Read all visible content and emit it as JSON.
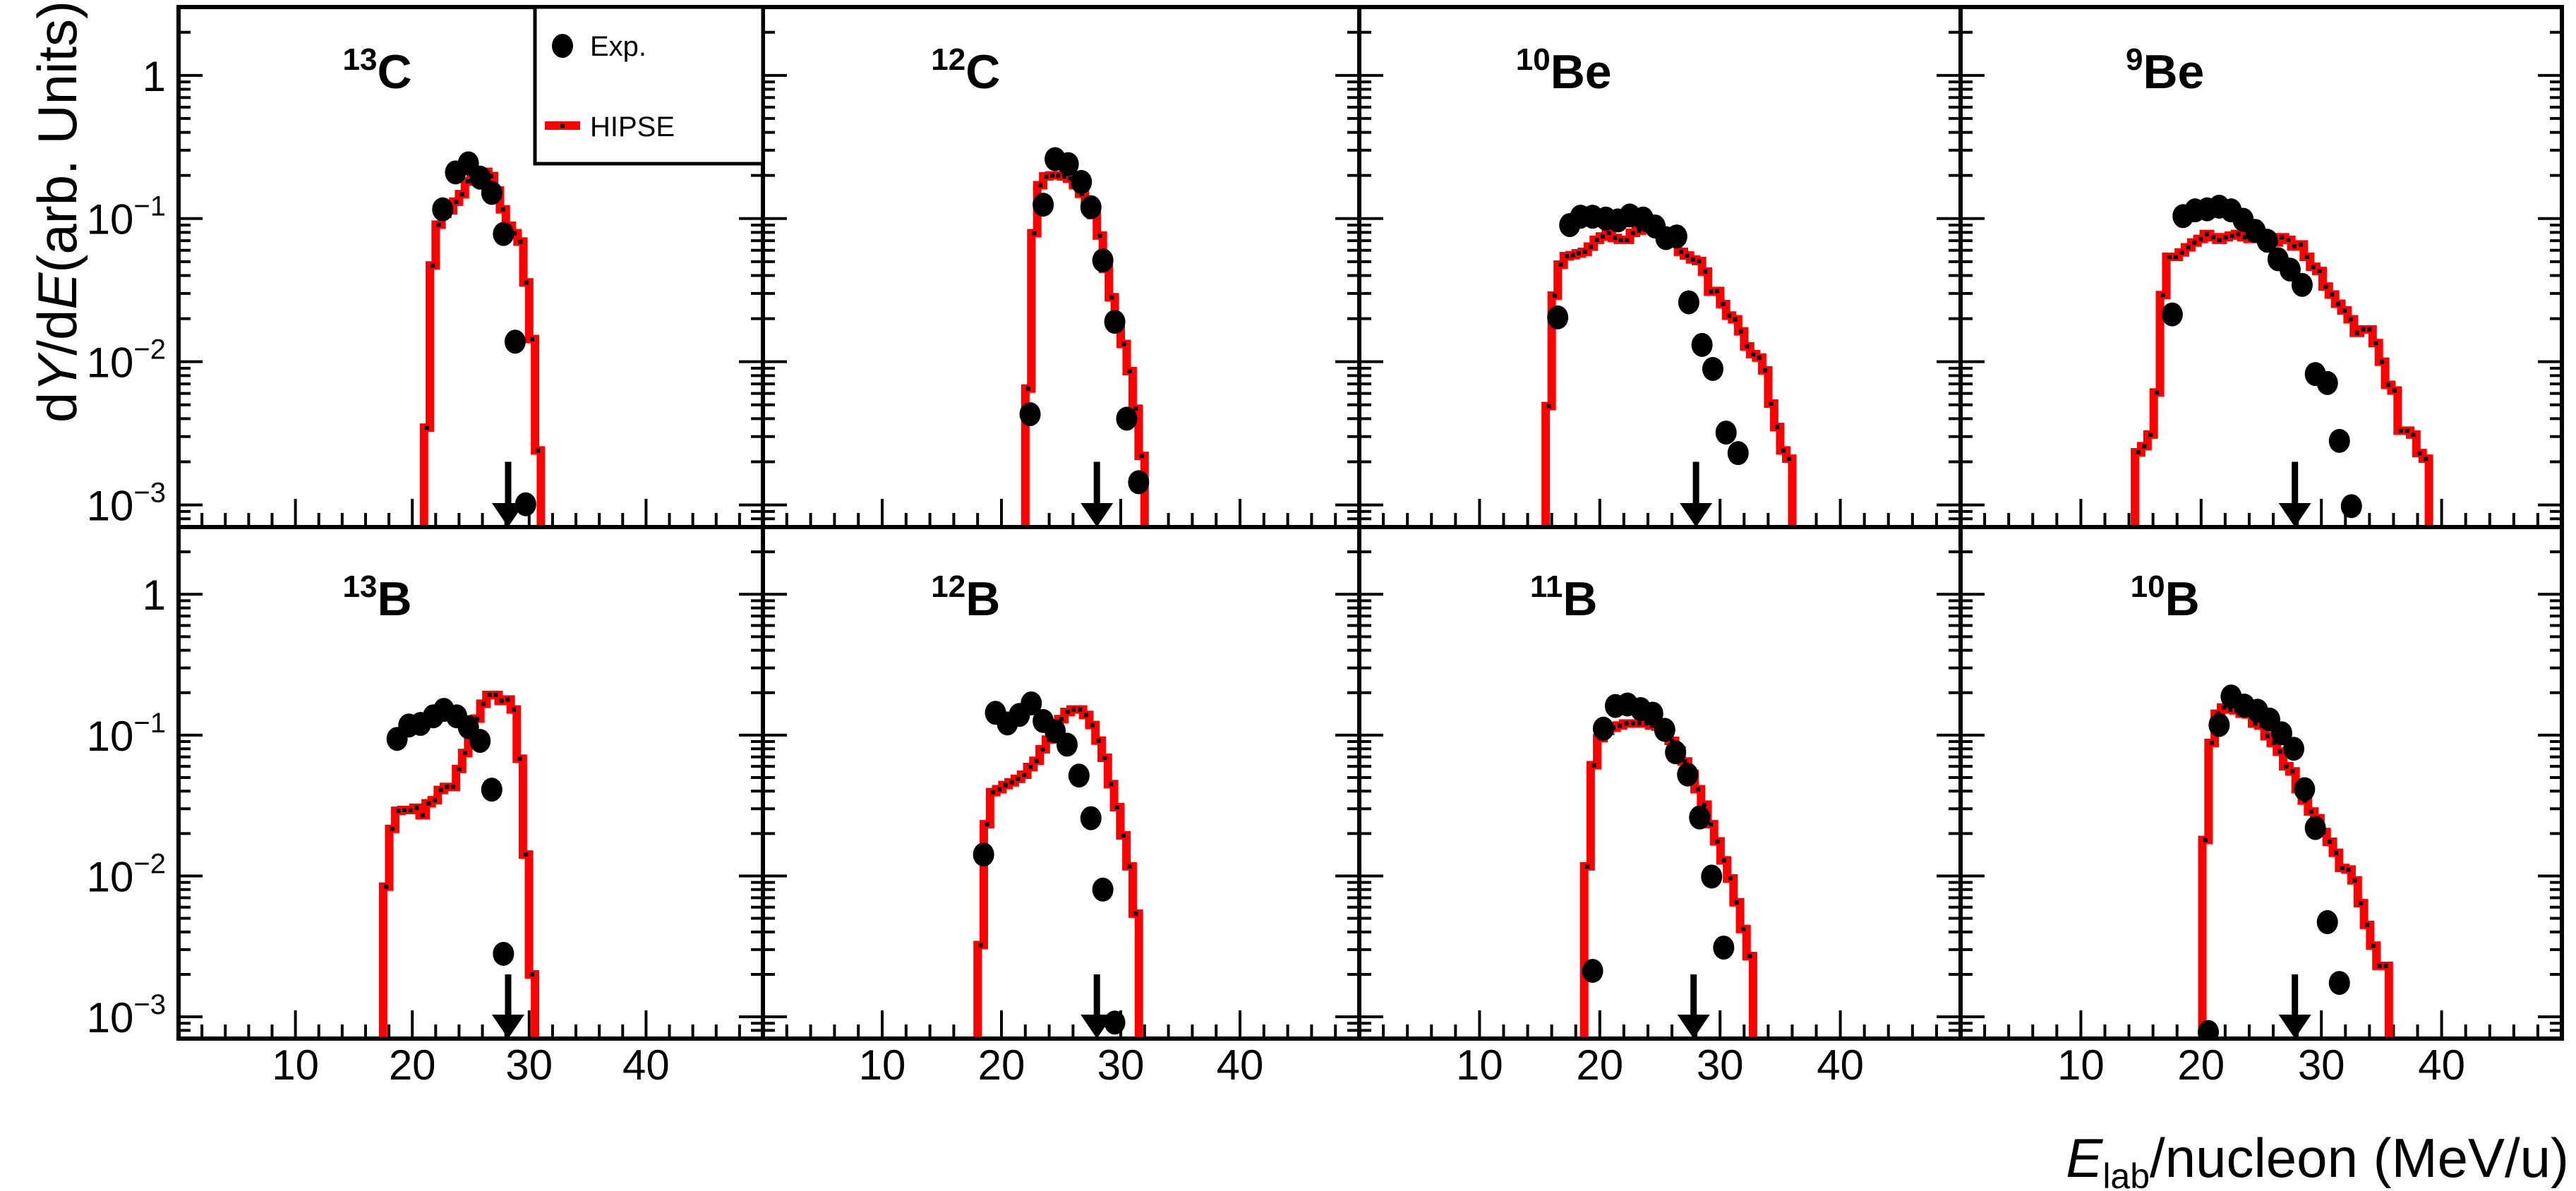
{
  "chart_data": {
    "type": "line",
    "ylabel": {
      "d1": "d",
      "Y": "Y",
      "slash": "/d",
      "E": "E",
      "rest": "(arb. Units)"
    },
    "xlabel": {
      "E": "E",
      "sub": "lab",
      "rest": "/nucleon (MeV/u)"
    },
    "xlim": [
      0,
      50
    ],
    "ylim": [
      0.0007,
      3
    ],
    "yscale": "log",
    "x_ticks": [
      10,
      20,
      30,
      40
    ],
    "x_tick_labels": [
      "10",
      "20",
      "30",
      "40"
    ],
    "y_ticks": [
      {
        "value": 1,
        "base": "1",
        "exp": ""
      },
      {
        "value": 0.1,
        "base": "10",
        "exp": "−1"
      },
      {
        "value": 0.01,
        "base": "10",
        "exp": "−2"
      },
      {
        "value": 0.001,
        "base": "10",
        "exp": "−3"
      }
    ],
    "legend": {
      "position": "top-right of first panel",
      "exp": "Exp.",
      "hipse": "HIPSE"
    },
    "colors": {
      "hipse": "#ff0000",
      "exp": "#000000"
    },
    "panels": [
      {
        "mass": "13",
        "element": "C",
        "arrow_E": 28.2,
        "exp": {
          "x": [
            22.6,
            23.7,
            24.8,
            25.8,
            26.8,
            27.8,
            28.8,
            29.7
          ],
          "y": [
            0.116,
            0.21,
            0.243,
            0.193,
            0.151,
            0.078,
            0.0138,
            0.00101
          ]
        },
        "hipse": {
          "start": 21.0,
          "width": 0.5,
          "y": [
            0.00346,
            0.047,
            0.0906,
            0.108,
            0.114,
            0.131,
            0.148,
            0.182,
            0.21,
            0.212,
            0.212,
            0.198,
            0.157,
            0.116,
            0.089,
            0.079,
            0.069,
            0.0358,
            0.0144,
            0.0024
          ]
        }
      },
      {
        "mass": "12",
        "element": "C",
        "arrow_E": 28.0,
        "exp": {
          "x": [
            22.4,
            23.5,
            24.5,
            25.6,
            26.7,
            27.5,
            28.5,
            29.5,
            30.5,
            31.5
          ],
          "y": [
            0.0043,
            0.125,
            0.26,
            0.24,
            0.18,
            0.12,
            0.051,
            0.019,
            0.004,
            0.00144
          ]
        },
        "hipse": {
          "start": 22.0,
          "width": 0.5,
          "y": [
            0.0065,
            0.079,
            0.171,
            0.197,
            0.2,
            0.2,
            0.197,
            0.19,
            0.171,
            0.149,
            0.13,
            0.106,
            0.076,
            0.0446,
            0.0282,
            0.0175,
            0.0133,
            0.0086,
            0.0047,
            0.0022
          ]
        }
      },
      {
        "mass": "10",
        "element": "Be",
        "arrow_E": 28.0,
        "exp": {
          "x": [
            16.5,
            17.5,
            18.4,
            19.4,
            20.5,
            21.5,
            22.5,
            23.6,
            24.6,
            25.5,
            26.4,
            27.4,
            28.5,
            29.4,
            30.5,
            31.5
          ],
          "y": [
            0.0204,
            0.09,
            0.103,
            0.103,
            0.1,
            0.097,
            0.105,
            0.1,
            0.088,
            0.073,
            0.075,
            0.026,
            0.0131,
            0.0089,
            0.0032,
            0.0023
          ]
        },
        "hipse": {
          "start": 15.5,
          "width": 0.5,
          "y": [
            0.0049,
            0.029,
            0.0477,
            0.0546,
            0.0555,
            0.0572,
            0.0586,
            0.0637,
            0.071,
            0.075,
            0.0794,
            0.0732,
            0.071,
            0.071,
            0.0794,
            0.0823,
            0.0837,
            0.0837,
            0.0794,
            0.0744,
            0.071,
            0.0667,
            0.0586,
            0.0552,
            0.0518,
            0.0505,
            0.0426,
            0.0309,
            0.0312,
            0.0253,
            0.021,
            0.0198,
            0.0163,
            0.0128,
            0.0113,
            0.0107,
            0.0087,
            0.0051,
            0.0035,
            0.0024,
            0.0021
          ]
        }
      },
      {
        "mass": "9",
        "element": "Be",
        "arrow_E": 27.8,
        "exp": {
          "x": [
            17.6,
            18.5,
            19.5,
            20.5,
            21.5,
            22.5,
            23.5,
            24.5,
            25.5,
            26.4,
            27.4,
            28.4,
            29.5,
            30.5,
            31.5,
            32.5
          ],
          "y": [
            0.0214,
            0.104,
            0.114,
            0.116,
            0.121,
            0.114,
            0.098,
            0.082,
            0.07,
            0.052,
            0.044,
            0.0344,
            0.0082,
            0.0071,
            0.0028,
            0.00098
          ]
        },
        "hipse": {
          "start": 14.5,
          "width": 0.52,
          "y": [
            0.00233,
            0.00257,
            0.0031,
            0.0061,
            0.0292,
            0.054,
            0.054,
            0.058,
            0.063,
            0.068,
            0.072,
            0.078,
            0.074,
            0.071,
            0.074,
            0.076,
            0.078,
            0.074,
            0.072,
            0.084,
            0.078,
            0.072,
            0.068,
            0.074,
            0.071,
            0.064,
            0.066,
            0.054,
            0.046,
            0.043,
            0.0335,
            0.0295,
            0.0254,
            0.0228,
            0.0198,
            0.0159,
            0.0168,
            0.0168,
            0.0135,
            0.01,
            0.0069,
            0.0063,
            0.0033,
            0.0033,
            0.0031,
            0.0023,
            0.0021
          ]
        }
      },
      {
        "mass": "13",
        "element": "B",
        "arrow_E": 28.2,
        "exp": {
          "x": [
            18.7,
            19.7,
            20.7,
            21.8,
            22.7,
            23.8,
            24.8,
            25.8,
            26.8,
            27.8
          ],
          "y": [
            0.094,
            0.117,
            0.12,
            0.136,
            0.151,
            0.136,
            0.114,
            0.091,
            0.041,
            0.0028
          ]
        },
        "hipse": {
          "start": 17.5,
          "width": 0.52,
          "y": [
            0.0084,
            0.0216,
            0.029,
            0.0294,
            0.0294,
            0.0305,
            0.027,
            0.0328,
            0.0345,
            0.0408,
            0.0429,
            0.0429,
            0.0575,
            0.0747,
            0.0957,
            0.131,
            0.167,
            0.193,
            0.193,
            0.175,
            0.179,
            0.152,
            0.068,
            0.0142,
            0.002
          ]
        }
      },
      {
        "mass": "12",
        "element": "B",
        "arrow_E": 28.0,
        "exp": {
          "x": [
            18.5,
            19.5,
            20.5,
            21.5,
            22.5,
            23.5,
            24.5,
            25.5,
            26.5,
            27.5,
            28.5,
            29.5
          ],
          "y": [
            0.0142,
            0.144,
            0.121,
            0.139,
            0.168,
            0.126,
            0.107,
            0.0855,
            0.0516,
            0.0257,
            0.008,
            0.00091
          ]
        },
        "hipse": {
          "start": 18.0,
          "width": 0.52,
          "y": [
            0.00323,
            0.0233,
            0.0394,
            0.0413,
            0.0442,
            0.0462,
            0.0489,
            0.0523,
            0.0594,
            0.0657,
            0.0794,
            0.0929,
            0.113,
            0.13,
            0.146,
            0.152,
            0.152,
            0.139,
            0.118,
            0.0914,
            0.069,
            0.0449,
            0.0308,
            0.0194,
            0.0117,
            0.0054
          ]
        }
      },
      {
        "mass": "11",
        "element": "B",
        "arrow_E": 27.8,
        "exp": {
          "x": [
            19.4,
            20.3,
            21.3,
            22.3,
            23.4,
            24.4,
            25.4,
            26.3,
            27.3,
            28.3,
            29.3,
            30.3
          ],
          "y": [
            0.00212,
            0.111,
            0.161,
            0.165,
            0.153,
            0.142,
            0.109,
            0.0755,
            0.0525,
            0.026,
            0.0099,
            0.0031
          ]
        },
        "hipse": {
          "start": 18.7,
          "width": 0.54,
          "y": [
            0.0117,
            0.0611,
            0.0951,
            0.107,
            0.113,
            0.117,
            0.121,
            0.121,
            0.121,
            0.121,
            0.117,
            0.115,
            0.101,
            0.091,
            0.0778,
            0.065,
            0.0531,
            0.0413,
            0.0321,
            0.0233,
            0.0176,
            0.0129,
            0.0096,
            0.0065,
            0.0042,
            0.0027
          ]
        }
      },
      {
        "mass": "10",
        "element": "B",
        "arrow_E": 27.8,
        "exp": {
          "x": [
            20.6,
            21.5,
            22.5,
            23.6,
            24.7,
            25.7,
            26.7,
            27.7,
            28.6,
            29.5,
            30.5,
            31.5
          ],
          "y": [
            0.00078,
            0.118,
            0.188,
            0.162,
            0.149,
            0.129,
            0.103,
            0.08,
            0.0413,
            0.0219,
            0.0047,
            0.00174
          ]
        },
        "hipse": {
          "start": 20.1,
          "width": 0.517,
          "y": [
            0.018,
            0.088,
            0.142,
            0.157,
            0.152,
            0.15,
            0.142,
            0.14,
            0.121,
            0.117,
            0.0984,
            0.088,
            0.0764,
            0.0601,
            0.0553,
            0.0413,
            0.0343,
            0.0287,
            0.0257,
            0.0205,
            0.0175,
            0.0146,
            0.0114,
            0.0111,
            0.0093,
            0.0064,
            0.0045,
            0.0032,
            0.0023,
            0.0023
          ]
        }
      }
    ]
  }
}
